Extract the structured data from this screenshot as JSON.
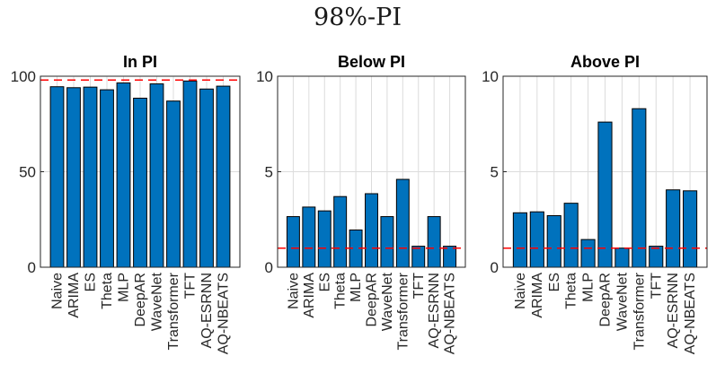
{
  "figure_title": "98%-PI",
  "chart_data": [
    {
      "type": "bar",
      "title": "In PI",
      "categories": [
        "Naive",
        "ARIMA",
        "ES",
        "Theta",
        "MLP",
        "DeepAR",
        "WaveNet",
        "Transformer",
        "TFT",
        "AQ-ESRNN",
        "AQ-NBEATS"
      ],
      "values": [
        94.5,
        94.0,
        94.3,
        92.9,
        96.5,
        88.5,
        96.0,
        87.0,
        97.5,
        93.3,
        94.8
      ],
      "ylim": [
        0,
        100
      ],
      "yticks": [
        0,
        50,
        100
      ],
      "reference_line": 98,
      "grid": true,
      "bar_color": "#0072BD",
      "reference_color": "#FF0000"
    },
    {
      "type": "bar",
      "title": "Below PI",
      "categories": [
        "Naive",
        "ARIMA",
        "ES",
        "Theta",
        "MLP",
        "DeepAR",
        "WaveNet",
        "Transformer",
        "TFT",
        "AQ-ESRNN",
        "AQ-NBEATS"
      ],
      "values": [
        2.65,
        3.15,
        2.95,
        3.7,
        1.95,
        3.85,
        2.65,
        4.6,
        1.1,
        2.65,
        1.1
      ],
      "ylim": [
        0,
        10
      ],
      "yticks": [
        0,
        5,
        10
      ],
      "reference_line": 1,
      "grid": true,
      "bar_color": "#0072BD",
      "reference_color": "#FF0000"
    },
    {
      "type": "bar",
      "title": "Above PI",
      "categories": [
        "Naive",
        "ARIMA",
        "ES",
        "Theta",
        "MLP",
        "DeepAR",
        "WaveNet",
        "Transformer",
        "TFT",
        "AQ-ESRNN",
        "AQ-NBEATS"
      ],
      "values": [
        2.85,
        2.9,
        2.7,
        3.35,
        1.45,
        7.6,
        1.0,
        8.3,
        1.1,
        4.05,
        4.0
      ],
      "ylim": [
        0,
        10
      ],
      "yticks": [
        0,
        5,
        10
      ],
      "reference_line": 1,
      "grid": true,
      "bar_color": "#0072BD",
      "reference_color": "#FF0000"
    }
  ]
}
